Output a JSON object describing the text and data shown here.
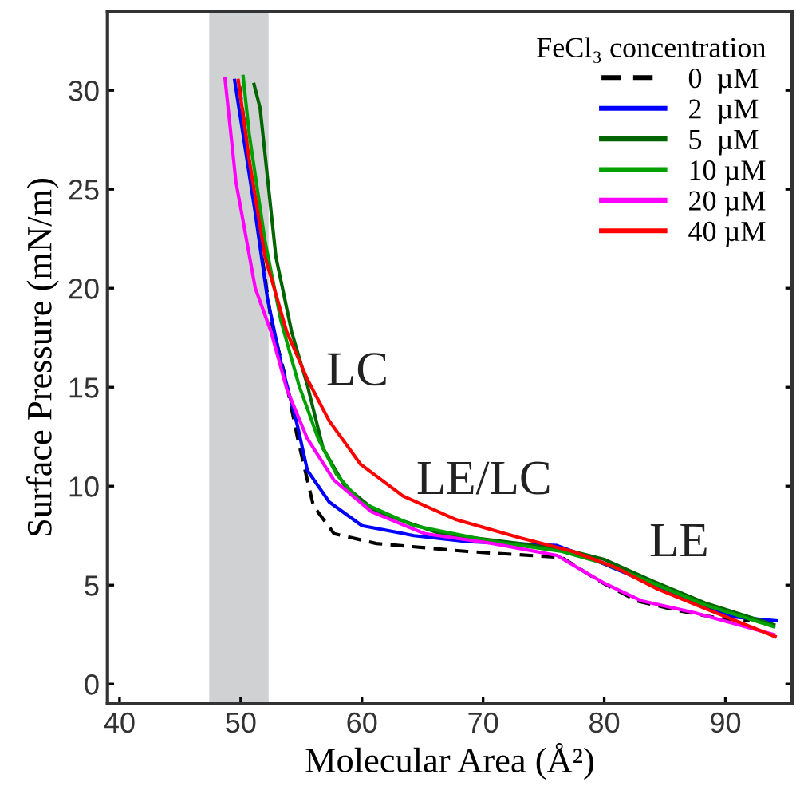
{
  "chart_data": {
    "type": "line",
    "xlabel": "Molecular Area (Å²)",
    "ylabel": "Surface Pressure (mN/m)",
    "legend_title": "FeCl₃ concentration",
    "legend": "top right",
    "grid": false,
    "marker": "none",
    "xlim": [
      39,
      95.5
    ],
    "ylim": [
      -1,
      34
    ],
    "xticks": [
      40,
      50,
      60,
      70,
      80,
      90
    ],
    "yticks": [
      0,
      5,
      10,
      15,
      20,
      25,
      30
    ],
    "bands": [
      {
        "axis": "x",
        "from": 47.4,
        "to": 52.3,
        "color": "#d0d1d3"
      }
    ],
    "annotations": [
      "LC",
      "LE/LC",
      "LE"
    ],
    "series": [
      {
        "name": "0  µM",
        "color": "#000000",
        "line_style": "dashed",
        "x": [
          49.9,
          51.2,
          52.5,
          53.6,
          54.7,
          56.0,
          57.7,
          61.2,
          68.7,
          76.5,
          79.6,
          82.7,
          86.2,
          89.7,
          92
        ],
        "values": [
          30.2,
          24,
          18.4,
          15.7,
          12.4,
          9.0,
          7.6,
          7.1,
          6.7,
          6.4,
          5.2,
          4.2,
          3.7,
          3.3,
          3.2
        ]
      },
      {
        "name": "2  µM",
        "color": "#0000ff",
        "line_style": "solid",
        "x": [
          49.5,
          51.2,
          52.2,
          53.3,
          54.7,
          55.5,
          57.3,
          60,
          64.3,
          68.7,
          76.1,
          78.3,
          81.8,
          86.2,
          90.5,
          94.2
        ],
        "values": [
          30.5,
          23.8,
          19.5,
          16.3,
          13.0,
          10.8,
          9.2,
          8.0,
          7.5,
          7.2,
          7.0,
          6.5,
          5.6,
          4.4,
          3.4,
          3.2
        ]
      },
      {
        "name": "5  µM",
        "color": "#006400",
        "line_style": "solid",
        "x": [
          51.1,
          51.6,
          52.9,
          54.2,
          55.5,
          56.8,
          58.6,
          61.2,
          66.5,
          73.0,
          77.4,
          80.0,
          84.0,
          88.3,
          94.0
        ],
        "values": [
          30.3,
          29.1,
          21.6,
          17.8,
          15.1,
          11.9,
          10.0,
          8.7,
          7.6,
          7.1,
          6.7,
          6.3,
          5.2,
          4.1,
          3.0
        ]
      },
      {
        "name": "10 µM",
        "color": "#00a000",
        "line_style": "solid",
        "x": [
          50.2,
          50.7,
          52.0,
          53.3,
          54.8,
          56.4,
          57.9,
          59.9,
          64.3,
          70.8,
          76.5,
          80,
          84,
          88.3,
          94
        ],
        "values": [
          30.7,
          27.8,
          22.4,
          18.4,
          15.1,
          12.4,
          10.6,
          9.2,
          8.0,
          7.2,
          6.7,
          6.1,
          5.1,
          4.0,
          2.9
        ]
      },
      {
        "name": "20 µM",
        "color": "#ff00ff",
        "line_style": "solid",
        "x": [
          48.7,
          49.6,
          51.2,
          52.5,
          53.8,
          55.5,
          57.7,
          60.8,
          65.2,
          70.8,
          76.1,
          78.3,
          80.0,
          83.1,
          87.5,
          94.0
        ],
        "values": [
          30.6,
          25.4,
          20.0,
          17.8,
          14.9,
          12.4,
          10.3,
          8.7,
          7.6,
          7.1,
          6.5,
          5.7,
          5.1,
          4.2,
          3.6,
          2.5
        ]
      },
      {
        "name": "40 µM",
        "color": "#ff0000",
        "line_style": "solid",
        "x": [
          49.8,
          50.7,
          52.0,
          53.8,
          55.5,
          57.3,
          59.9,
          63.4,
          67.8,
          73,
          77.4,
          80.9,
          84.4,
          88.8,
          94.1
        ],
        "values": [
          30.5,
          26.5,
          21.6,
          17.8,
          15.4,
          13.3,
          11.1,
          9.5,
          8.3,
          7.4,
          6.7,
          5.9,
          4.8,
          3.7,
          2.4
        ]
      }
    ]
  }
}
